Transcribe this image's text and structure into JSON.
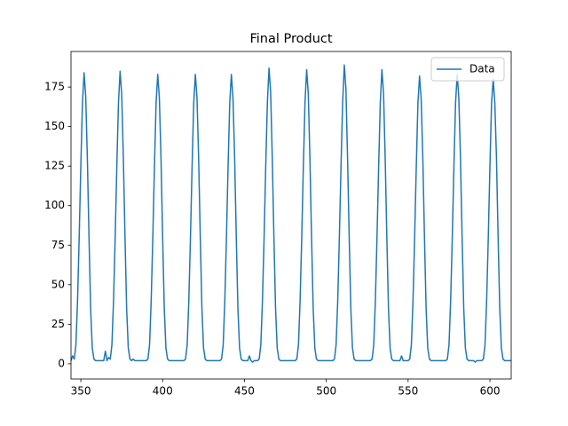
{
  "chart_data": {
    "type": "line",
    "title": "Final Product",
    "x": [
      344,
      345,
      346,
      347,
      348,
      349,
      350,
      351,
      352,
      353,
      354,
      355,
      356,
      357,
      358,
      359,
      360,
      361,
      362,
      363,
      364,
      365,
      366,
      367,
      368,
      369,
      370,
      371,
      372,
      373,
      374,
      375,
      376,
      377,
      378,
      379,
      380,
      381,
      382,
      383,
      384,
      385,
      386,
      387,
      388,
      389,
      390,
      391,
      392,
      393,
      394,
      395,
      396,
      397,
      398,
      399,
      400,
      401,
      402,
      403,
      404,
      405,
      406,
      407,
      408,
      409,
      410,
      411,
      412,
      413,
      414,
      415,
      416,
      417,
      418,
      419,
      420,
      421,
      422,
      423,
      424,
      425,
      426,
      427,
      428,
      429,
      430,
      431,
      432,
      433,
      434,
      435,
      436,
      437,
      438,
      439,
      440,
      441,
      442,
      443,
      444,
      445,
      446,
      447,
      448,
      449,
      450,
      451,
      452,
      453,
      454,
      455,
      456,
      457,
      458,
      459,
      460,
      461,
      462,
      463,
      464,
      465,
      466,
      467,
      468,
      469,
      470,
      471,
      472,
      473,
      474,
      475,
      476,
      477,
      478,
      479,
      480,
      481,
      482,
      483,
      484,
      485,
      486,
      487,
      488,
      489,
      490,
      491,
      492,
      493,
      494,
      495,
      496,
      497,
      498,
      499,
      500,
      501,
      502,
      503,
      504,
      505,
      506,
      507,
      508,
      509,
      510,
      511,
      512,
      513,
      514,
      515,
      516,
      517,
      518,
      519,
      520,
      521,
      522,
      523,
      524,
      525,
      526,
      527,
      528,
      529,
      530,
      531,
      532,
      533,
      534,
      535,
      536,
      537,
      538,
      539,
      540,
      541,
      542,
      543,
      544,
      545,
      546,
      547,
      548,
      549,
      550,
      551,
      552,
      553,
      554,
      555,
      556,
      557,
      558,
      559,
      560,
      561,
      562,
      563,
      564,
      565,
      566,
      567,
      568,
      569,
      570,
      571,
      572,
      573,
      574,
      575,
      576,
      577,
      578,
      579,
      580,
      581,
      582,
      583,
      584,
      585,
      586,
      587,
      588,
      589,
      590,
      591,
      592,
      593,
      594,
      595,
      596,
      597,
      598,
      599,
      600,
      601,
      602,
      603,
      604,
      605,
      606,
      607,
      608,
      609,
      610,
      611,
      612,
      613
    ],
    "series": [
      {
        "name": "Data",
        "color": "#1f77b4",
        "values": [
          2,
          5,
          3,
          12,
          40,
          80,
          125,
          165,
          184,
          169,
          130,
          80,
          35,
          10,
          3,
          2,
          2,
          2,
          2,
          2,
          2,
          8,
          2,
          4,
          3,
          12,
          40,
          80,
          125,
          165,
          185,
          170,
          130,
          80,
          35,
          10,
          3,
          2,
          3,
          2,
          2,
          2,
          2,
          2,
          2,
          2,
          2,
          3,
          12,
          40,
          80,
          125,
          165,
          183,
          168,
          130,
          80,
          35,
          10,
          3,
          2,
          2,
          2,
          2,
          2,
          2,
          2,
          2,
          2,
          2,
          3,
          12,
          40,
          80,
          125,
          165,
          183,
          168,
          130,
          80,
          35,
          10,
          3,
          2,
          2,
          2,
          2,
          2,
          2,
          2,
          2,
          2,
          3,
          12,
          40,
          80,
          125,
          165,
          183,
          168,
          130,
          80,
          35,
          10,
          3,
          2,
          2,
          2,
          2,
          5,
          2,
          1,
          2,
          2,
          2,
          3,
          12,
          40,
          80,
          125,
          165,
          187,
          172,
          130,
          80,
          35,
          10,
          3,
          2,
          2,
          2,
          2,
          2,
          2,
          2,
          2,
          2,
          2,
          3,
          12,
          40,
          80,
          125,
          165,
          186,
          171,
          130,
          80,
          35,
          10,
          3,
          2,
          2,
          2,
          2,
          2,
          2,
          2,
          2,
          2,
          2,
          3,
          12,
          40,
          80,
          125,
          165,
          189,
          174,
          130,
          80,
          35,
          10,
          3,
          2,
          2,
          2,
          2,
          2,
          2,
          2,
          2,
          2,
          2,
          3,
          12,
          40,
          80,
          125,
          165,
          186,
          171,
          130,
          80,
          35,
          10,
          3,
          2,
          2,
          2,
          2,
          2,
          5,
          2,
          2,
          2,
          2,
          3,
          12,
          40,
          80,
          125,
          165,
          182,
          167,
          130,
          80,
          35,
          10,
          3,
          2,
          2,
          2,
          2,
          2,
          2,
          2,
          2,
          2,
          2,
          3,
          12,
          40,
          80,
          125,
          165,
          183,
          168,
          130,
          80,
          35,
          10,
          3,
          2,
          2,
          2,
          2,
          1,
          2,
          2,
          2,
          2,
          3,
          12,
          40,
          80,
          125,
          165,
          180,
          165,
          130,
          80,
          35,
          10,
          3,
          2,
          2,
          2,
          2,
          2
        ]
      }
    ],
    "xlim": [
      344,
      613
    ],
    "ylim": [
      -9.6,
      197.5
    ],
    "xticks": [
      350,
      400,
      450,
      500,
      550,
      600
    ],
    "yticks": [
      0,
      25,
      50,
      75,
      100,
      125,
      150,
      175
    ],
    "legend": "upper right"
  }
}
